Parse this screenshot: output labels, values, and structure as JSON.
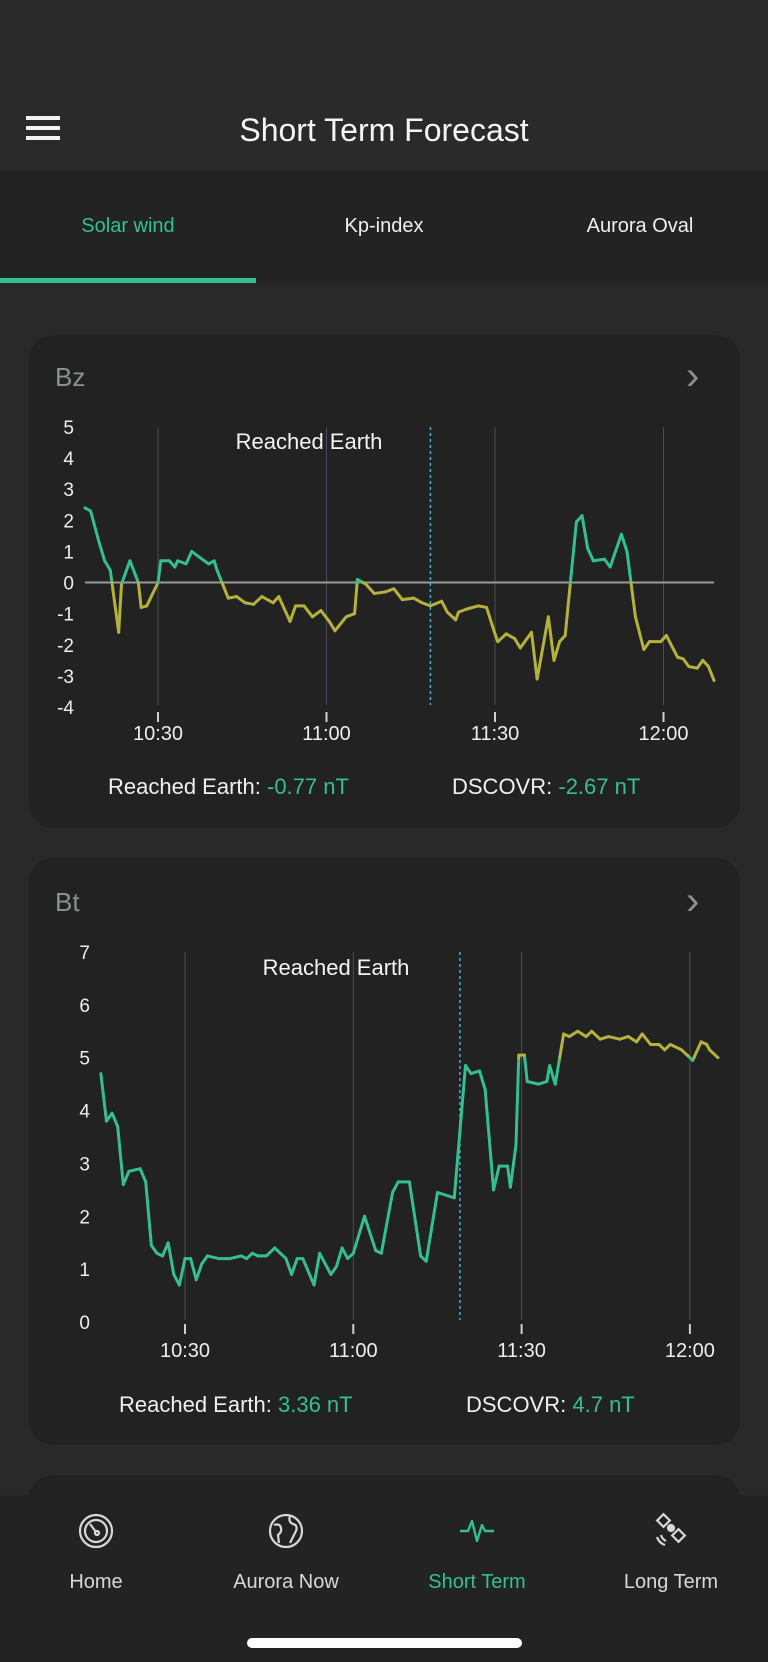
{
  "header": {
    "title": "Short Term Forecast",
    "menu_icon": "hamburger-icon"
  },
  "tabs": [
    {
      "label": "Solar wind",
      "active": true
    },
    {
      "label": "Kp-index",
      "active": false
    },
    {
      "label": "Aurora Oval",
      "active": false
    }
  ],
  "colors": {
    "accent": "#34c08e",
    "warning_line": "#b5b23c",
    "marker": "#3ab0e0"
  },
  "chart_data": [
    {
      "type": "line",
      "title": "Bz",
      "ylim": [
        -4,
        5
      ],
      "yticks": [
        "5",
        "4",
        "3",
        "2",
        "1",
        "0",
        "-1",
        "-2",
        "-3",
        "-4"
      ],
      "xticks": [
        "10:30",
        "11:00",
        "11:30",
        "12:00"
      ],
      "xlim": [
        "10:17:00",
        "12:09:00"
      ],
      "grid": "vertical",
      "zero_line": true,
      "marker_label": "Reached Earth",
      "marker_time": "11:18:30",
      "points": [
        [
          "10:17:00",
          2.4
        ],
        [
          "10:18:00",
          2.3
        ],
        [
          "10:19:30",
          1.3
        ],
        [
          "10:20:30",
          0.7
        ],
        [
          "10:21:30",
          0.4
        ],
        [
          "10:23:00",
          -1.6
        ],
        [
          "10:23:30",
          -0.05
        ],
        [
          "10:25:00",
          0.7
        ],
        [
          "10:26:30",
          0
        ],
        [
          "10:27:00",
          -0.8
        ],
        [
          "10:28:00",
          -0.75
        ],
        [
          "10:30:00",
          0
        ],
        [
          "10:30:30",
          0.7
        ],
        [
          "10:32:00",
          0.7
        ],
        [
          "10:33:00",
          0.5
        ],
        [
          "10:33:30",
          0.7
        ],
        [
          "10:35:00",
          0.6
        ],
        [
          "10:36:00",
          1.0
        ],
        [
          "10:37:30",
          0.8
        ],
        [
          "10:39:00",
          0.6
        ],
        [
          "10:40:00",
          0.7
        ],
        [
          "10:40:30",
          0.4
        ],
        [
          "10:42:30",
          -0.5
        ],
        [
          "10:44:00",
          -0.45
        ],
        [
          "10:45:30",
          -0.65
        ],
        [
          "10:47:00",
          -0.7
        ],
        [
          "10:48:30",
          -0.45
        ],
        [
          "10:50:30",
          -0.65
        ],
        [
          "10:51:30",
          -0.45
        ],
        [
          "10:53:30",
          -1.25
        ],
        [
          "10:54:30",
          -0.75
        ],
        [
          "10:56:00",
          -0.75
        ],
        [
          "10:57:30",
          -1.1
        ],
        [
          "10:59:00",
          -0.9
        ],
        [
          "11:00:30",
          -1.25
        ],
        [
          "11:01:30",
          -1.55
        ],
        [
          "11:03:30",
          -1.1
        ],
        [
          "11:05:00",
          -1.0
        ],
        [
          "11:05:30",
          0.1
        ],
        [
          "11:07:00",
          -0.05
        ],
        [
          "11:08:30",
          -0.35
        ],
        [
          "11:10:30",
          -0.3
        ],
        [
          "11:12:00",
          -0.2
        ],
        [
          "11:13:30",
          -0.55
        ],
        [
          "11:15:30",
          -0.5
        ],
        [
          "11:17:00",
          -0.65
        ],
        [
          "11:18:30",
          -0.75
        ],
        [
          "11:20:30",
          -0.6
        ],
        [
          "11:21:30",
          -0.95
        ],
        [
          "11:23:00",
          -1.2
        ],
        [
          "11:23:30",
          -0.95
        ],
        [
          "11:25:00",
          -0.85
        ],
        [
          "11:27:00",
          -0.75
        ],
        [
          "11:28:30",
          -0.8
        ],
        [
          "11:30:00",
          -1.65
        ],
        [
          "11:30:30",
          -1.9
        ],
        [
          "11:32:00",
          -1.65
        ],
        [
          "11:33:30",
          -1.8
        ],
        [
          "11:34:30",
          -2.1
        ],
        [
          "11:36:30",
          -1.6
        ],
        [
          "11:37:30",
          -3.1
        ],
        [
          "11:39:30",
          -1.1
        ],
        [
          "11:40:30",
          -2.5
        ],
        [
          "11:41:30",
          -1.9
        ],
        [
          "11:42:30",
          -1.7
        ],
        [
          "11:43:30",
          0.15
        ],
        [
          "11:44:30",
          1.95
        ],
        [
          "11:45:30",
          2.15
        ],
        [
          "11:46:30",
          1.1
        ],
        [
          "11:47:30",
          0.7
        ],
        [
          "11:49:30",
          0.75
        ],
        [
          "11:50:30",
          0.5
        ],
        [
          "11:52:30",
          1.55
        ],
        [
          "11:53:30",
          1.0
        ],
        [
          "11:55:00",
          -1.1
        ],
        [
          "11:56:30",
          -2.15
        ],
        [
          "11:57:30",
          -1.9
        ],
        [
          "11:59:30",
          -1.9
        ],
        [
          "12:00:30",
          -1.7
        ],
        [
          "12:02:30",
          -2.4
        ],
        [
          "12:03:30",
          -2.45
        ],
        [
          "12:04:30",
          -2.7
        ],
        [
          "12:06:00",
          -2.75
        ],
        [
          "12:07:00",
          -2.5
        ],
        [
          "12:08:00",
          -2.7
        ],
        [
          "12:09:00",
          -3.15
        ]
      ],
      "summary": {
        "left_label": "Reached Earth:",
        "left_value": "-0.77 nT",
        "right_label": "DSCOVR:",
        "right_value": "-2.67 nT"
      }
    },
    {
      "type": "line",
      "title": "Bt",
      "ylim": [
        0,
        7
      ],
      "yticks": [
        "7",
        "6",
        "5",
        "4",
        "3",
        "2",
        "1",
        "0"
      ],
      "xticks": [
        "10:30",
        "11:00",
        "11:30",
        "12:00"
      ],
      "xlim": [
        "10:15:00",
        "12:05:00"
      ],
      "grid": "vertical",
      "marker_label": "Reached Earth",
      "marker_time": "11:19:00",
      "points": [
        [
          "10:15:00",
          4.7
        ],
        [
          "10:16:00",
          3.8
        ],
        [
          "10:17:00",
          3.95
        ],
        [
          "10:18:00",
          3.7
        ],
        [
          "10:19:00",
          2.6
        ],
        [
          "10:20:00",
          2.85
        ],
        [
          "10:22:00",
          2.9
        ],
        [
          "10:23:00",
          2.65
        ],
        [
          "10:24:00",
          1.45
        ],
        [
          "10:25:00",
          1.3
        ],
        [
          "10:26:00",
          1.25
        ],
        [
          "10:27:00",
          1.5
        ],
        [
          "10:28:00",
          0.9
        ],
        [
          "10:29:00",
          0.7
        ],
        [
          "10:30:00",
          1.2
        ],
        [
          "10:31:00",
          1.2
        ],
        [
          "10:32:00",
          0.8
        ],
        [
          "10:33:00",
          1.1
        ],
        [
          "10:34:00",
          1.25
        ],
        [
          "10:36:00",
          1.2
        ],
        [
          "10:38:00",
          1.2
        ],
        [
          "10:40:00",
          1.25
        ],
        [
          "10:41:00",
          1.2
        ],
        [
          "10:42:00",
          1.3
        ],
        [
          "10:43:00",
          1.25
        ],
        [
          "10:44:30",
          1.25
        ],
        [
          "10:46:00",
          1.4
        ],
        [
          "10:48:00",
          1.2
        ],
        [
          "10:49:00",
          0.9
        ],
        [
          "10:50:00",
          1.2
        ],
        [
          "10:51:00",
          1.2
        ],
        [
          "10:53:00",
          0.7
        ],
        [
          "10:54:00",
          1.3
        ],
        [
          "10:55:30",
          1.0
        ],
        [
          "10:56:00",
          0.9
        ],
        [
          "10:57:00",
          1.05
        ],
        [
          "10:58:00",
          1.4
        ],
        [
          "10:59:00",
          1.2
        ],
        [
          "11:00:00",
          1.3
        ],
        [
          "11:02:00",
          2.0
        ],
        [
          "11:04:00",
          1.35
        ],
        [
          "11:05:00",
          1.3
        ],
        [
          "11:07:00",
          2.45
        ],
        [
          "11:08:00",
          2.65
        ],
        [
          "11:10:00",
          2.65
        ],
        [
          "11:12:00",
          1.25
        ],
        [
          "11:13:00",
          1.15
        ],
        [
          "11:15:00",
          2.45
        ],
        [
          "11:18:00",
          2.35
        ],
        [
          "11:20:00",
          4.85
        ],
        [
          "11:21:00",
          4.7
        ],
        [
          "11:22:30",
          4.75
        ],
        [
          "11:23:30",
          4.4
        ],
        [
          "11:25:00",
          2.5
        ],
        [
          "11:26:00",
          2.95
        ],
        [
          "11:27:30",
          2.95
        ],
        [
          "11:28:00",
          2.55
        ],
        [
          "11:29:00",
          3.35
        ],
        [
          "11:29:30",
          5.05
        ],
        [
          "11:30:30",
          5.05
        ],
        [
          "11:31:00",
          4.55
        ],
        [
          "11:33:00",
          4.5
        ],
        [
          "11:34:30",
          4.55
        ],
        [
          "11:35:00",
          4.85
        ],
        [
          "11:36:00",
          4.5
        ],
        [
          "11:37:30",
          5.45
        ],
        [
          "11:38:30",
          5.4
        ],
        [
          "11:40:00",
          5.5
        ],
        [
          "11:41:30",
          5.4
        ],
        [
          "11:42:30",
          5.5
        ],
        [
          "11:44:00",
          5.35
        ],
        [
          "11:45:30",
          5.4
        ],
        [
          "11:47:30",
          5.35
        ],
        [
          "11:49:00",
          5.4
        ],
        [
          "11:50:30",
          5.3
        ],
        [
          "11:51:30",
          5.45
        ],
        [
          "11:53:00",
          5.25
        ],
        [
          "11:54:30",
          5.25
        ],
        [
          "11:55:30",
          5.15
        ],
        [
          "11:56:30",
          5.25
        ],
        [
          "11:58:30",
          5.15
        ],
        [
          "11:59:30",
          5.05
        ],
        [
          "12:00:30",
          4.95
        ],
        [
          "12:02:00",
          5.3
        ],
        [
          "12:03:00",
          5.25
        ],
        [
          "12:03:30",
          5.15
        ],
        [
          "12:05:00",
          5.0
        ]
      ],
      "summary": {
        "left_label": "Reached Earth:",
        "left_value": "3.36 nT",
        "right_label": "DSCOVR:",
        "right_value": "4.7 nT"
      }
    }
  ],
  "bottom_nav": [
    {
      "label": "Home",
      "icon": "gauge-icon",
      "active": false
    },
    {
      "label": "Aurora Now",
      "icon": "globe-icon",
      "active": false
    },
    {
      "label": "Short Term",
      "icon": "pulse-icon",
      "active": true
    },
    {
      "label": "Long Term",
      "icon": "satellite-icon",
      "active": false
    }
  ]
}
